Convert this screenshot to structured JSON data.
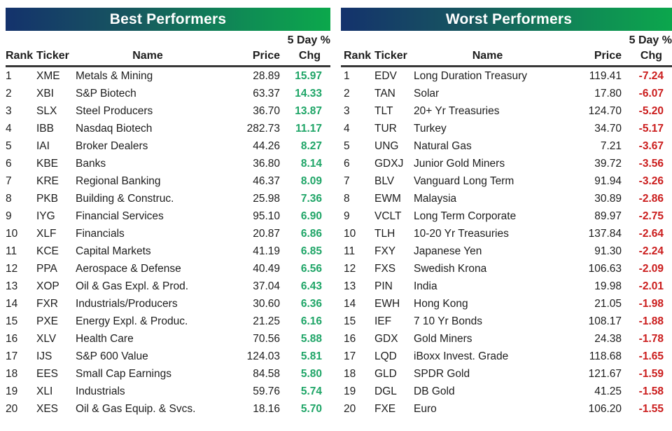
{
  "colors": {
    "title_gradient_left": "#14326C",
    "title_gradient_right": "#0CA84C",
    "positive_value": "#1FA567",
    "negative_value": "#CB1D1D",
    "text": "#1D1D1D",
    "header_underline": "#383838"
  },
  "tables": [
    {
      "title": "Best Performers",
      "change_header": "5 Day %",
      "trend": "positive",
      "columns": {
        "rank": "Rank",
        "ticker": "Ticker",
        "name": "Name",
        "price": "Price",
        "chg": "Chg"
      },
      "rows": [
        {
          "rank": "1",
          "ticker": "XME",
          "name": "Metals & Mining",
          "price": "28.89",
          "chg": "15.97"
        },
        {
          "rank": "2",
          "ticker": "XBI",
          "name": "S&P Biotech",
          "price": "63.37",
          "chg": "14.33"
        },
        {
          "rank": "3",
          "ticker": "SLX",
          "name": "Steel Producers",
          "price": "36.70",
          "chg": "13.87"
        },
        {
          "rank": "4",
          "ticker": "IBB",
          "name": "Nasdaq Biotech",
          "price": "282.73",
          "chg": "11.17"
        },
        {
          "rank": "5",
          "ticker": "IAI",
          "name": "Broker Dealers",
          "price": "44.26",
          "chg": "8.27"
        },
        {
          "rank": "6",
          "ticker": "KBE",
          "name": "Banks",
          "price": "36.80",
          "chg": "8.14"
        },
        {
          "rank": "7",
          "ticker": "KRE",
          "name": "Regional Banking",
          "price": "46.37",
          "chg": "8.09"
        },
        {
          "rank": "8",
          "ticker": "PKB",
          "name": "Building & Construc.",
          "price": "25.98",
          "chg": "7.36"
        },
        {
          "rank": "9",
          "ticker": "IYG",
          "name": "Financial Services",
          "price": "95.10",
          "chg": "6.90"
        },
        {
          "rank": "10",
          "ticker": "XLF",
          "name": "Financials",
          "price": "20.87",
          "chg": "6.86"
        },
        {
          "rank": "11",
          "ticker": "KCE",
          "name": "Capital Markets",
          "price": "41.19",
          "chg": "6.85"
        },
        {
          "rank": "12",
          "ticker": "PPA",
          "name": "Aerospace & Defense",
          "price": "40.49",
          "chg": "6.56"
        },
        {
          "rank": "13",
          "ticker": "XOP",
          "name": "Oil & Gas Expl. & Prod.",
          "price": "37.04",
          "chg": "6.43"
        },
        {
          "rank": "14",
          "ticker": "FXR",
          "name": "Industrials/Producers",
          "price": "30.60",
          "chg": "6.36"
        },
        {
          "rank": "15",
          "ticker": "PXE",
          "name": "Energy Expl. & Produc.",
          "price": "21.25",
          "chg": "6.16"
        },
        {
          "rank": "16",
          "ticker": "XLV",
          "name": "Health Care",
          "price": "70.56",
          "chg": "5.88"
        },
        {
          "rank": "17",
          "ticker": "IJS",
          "name": "S&P 600 Value",
          "price": "124.03",
          "chg": "5.81"
        },
        {
          "rank": "18",
          "ticker": "EES",
          "name": "Small Cap Earnings",
          "price": "84.58",
          "chg": "5.80"
        },
        {
          "rank": "19",
          "ticker": "XLI",
          "name": "Industrials",
          "price": "59.76",
          "chg": "5.74"
        },
        {
          "rank": "20",
          "ticker": "XES",
          "name": "Oil & Gas Equip. & Svcs.",
          "price": "18.16",
          "chg": "5.70"
        }
      ]
    },
    {
      "title": "Worst Performers",
      "change_header": "5 Day %",
      "trend": "negative",
      "columns": {
        "rank": "Rank",
        "ticker": "Ticker",
        "name": "Name",
        "price": "Price",
        "chg": "Chg"
      },
      "rows": [
        {
          "rank": "1",
          "ticker": "EDV",
          "name": "Long Duration Treasury",
          "price": "119.41",
          "chg": "-7.24"
        },
        {
          "rank": "2",
          "ticker": "TAN",
          "name": "Solar",
          "price": "17.80",
          "chg": "-6.07"
        },
        {
          "rank": "3",
          "ticker": "TLT",
          "name": "20+ Yr Treasuries",
          "price": "124.70",
          "chg": "-5.20"
        },
        {
          "rank": "4",
          "ticker": "TUR",
          "name": "Turkey",
          "price": "34.70",
          "chg": "-5.17"
        },
        {
          "rank": "5",
          "ticker": "UNG",
          "name": "Natural Gas",
          "price": "7.21",
          "chg": "-3.67"
        },
        {
          "rank": "6",
          "ticker": "GDXJ",
          "name": "Junior Gold Miners",
          "price": "39.72",
          "chg": "-3.56"
        },
        {
          "rank": "7",
          "ticker": "BLV",
          "name": "Vanguard Long Term",
          "price": "91.94",
          "chg": "-3.26"
        },
        {
          "rank": "8",
          "ticker": "EWM",
          "name": "Malaysia",
          "price": "30.89",
          "chg": "-2.86"
        },
        {
          "rank": "9",
          "ticker": "VCLT",
          "name": "Long Term Corporate",
          "price": "89.97",
          "chg": "-2.75"
        },
        {
          "rank": "10",
          "ticker": "TLH",
          "name": "10-20 Yr Treasuries",
          "price": "137.84",
          "chg": "-2.64"
        },
        {
          "rank": "11",
          "ticker": "FXY",
          "name": "Japanese Yen",
          "price": "91.30",
          "chg": "-2.24"
        },
        {
          "rank": "12",
          "ticker": "FXS",
          "name": "Swedish Krona",
          "price": "106.63",
          "chg": "-2.09"
        },
        {
          "rank": "13",
          "ticker": "PIN",
          "name": "India",
          "price": "19.98",
          "chg": "-2.01"
        },
        {
          "rank": "14",
          "ticker": "EWH",
          "name": "Hong Kong",
          "price": "21.05",
          "chg": "-1.98"
        },
        {
          "rank": "15",
          "ticker": "IEF",
          "name": "7 10 Yr Bonds",
          "price": "108.17",
          "chg": "-1.88"
        },
        {
          "rank": "16",
          "ticker": "GDX",
          "name": "Gold Miners",
          "price": "24.38",
          "chg": "-1.78"
        },
        {
          "rank": "17",
          "ticker": "LQD",
          "name": "iBoxx Invest. Grade",
          "price": "118.68",
          "chg": "-1.65"
        },
        {
          "rank": "18",
          "ticker": "GLD",
          "name": "SPDR Gold",
          "price": "121.67",
          "chg": "-1.59"
        },
        {
          "rank": "19",
          "ticker": "DGL",
          "name": "DB Gold",
          "price": "41.25",
          "chg": "-1.58"
        },
        {
          "rank": "20",
          "ticker": "FXE",
          "name": "Euro",
          "price": "106.20",
          "chg": "-1.55"
        }
      ]
    }
  ]
}
